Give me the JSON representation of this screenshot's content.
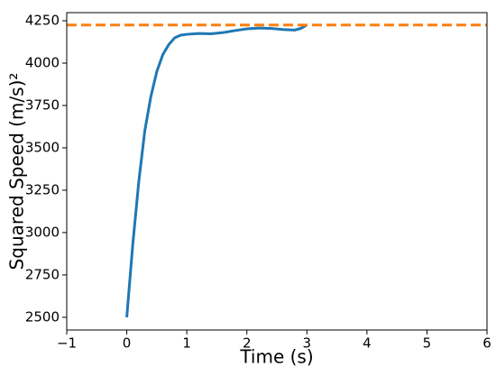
{
  "chart_data": {
    "type": "line",
    "xlabel": "Time (s)",
    "ylabel": "Squared Speed (m/s)²",
    "x": [
      0,
      0.1,
      0.2,
      0.3,
      0.4,
      0.5,
      0.6,
      0.7,
      0.8,
      0.9,
      1.0,
      1.2,
      1.4,
      1.6,
      1.8,
      2.0,
      2.2,
      2.4,
      2.6,
      2.8,
      2.9,
      3.0
    ],
    "series": [
      {
        "color": "#1f77b4",
        "values": [
          2500,
          2930,
          3300,
          3600,
          3800,
          3950,
          4050,
          4110,
          4150,
          4165,
          4170,
          4175,
          4173,
          4180,
          4192,
          4202,
          4207,
          4205,
          4198,
          4195,
          4205,
          4225
        ]
      }
    ],
    "reference_line": {
      "value": 4225,
      "color": "#ff7f0e",
      "dashed": true
    },
    "xlim": [
      -1,
      6
    ],
    "xticks": [
      {
        "value": -1,
        "label": "−1"
      },
      0,
      1,
      2,
      3,
      4,
      5,
      6
    ],
    "ylim": [
      2425,
      4298
    ],
    "yticks": [
      2500,
      2750,
      3000,
      3250,
      3500,
      3750,
      4000,
      4250
    ]
  }
}
